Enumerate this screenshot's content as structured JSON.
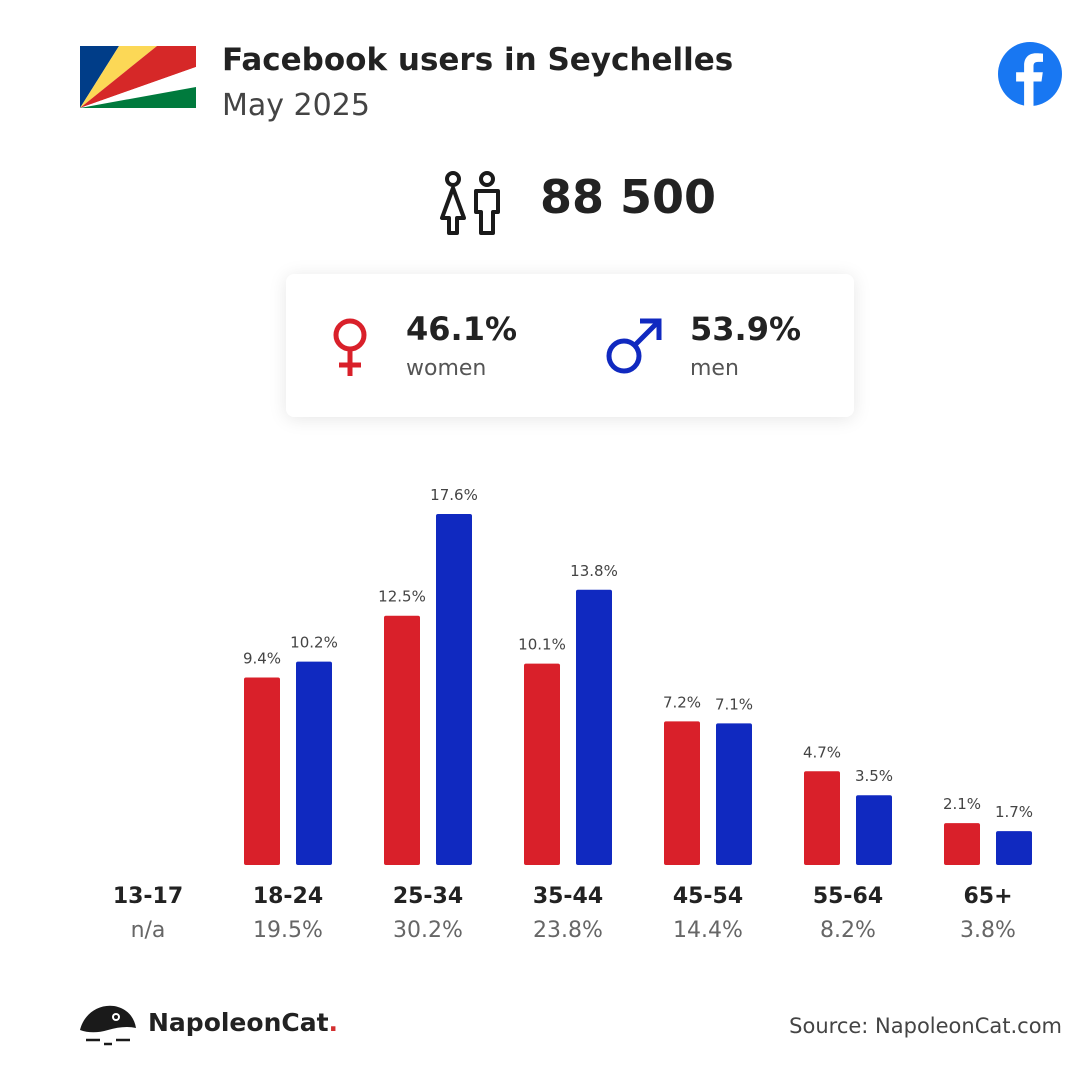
{
  "header": {
    "title": "Facebook users in Seychelles",
    "subtitle": "May 2025",
    "flag_icon": "seychelles-flag",
    "platform_icon": "facebook-icon"
  },
  "summary": {
    "total": "88 500",
    "total_icon": "people-icon",
    "women": {
      "pct": "46.1%",
      "label": "women",
      "icon": "female-symbol-icon",
      "color": "#d9202a"
    },
    "men": {
      "pct": "53.9%",
      "label": "men",
      "icon": "male-symbol-icon",
      "color": "#1029c0"
    }
  },
  "chart_data": {
    "type": "bar",
    "categories": [
      "13-17",
      "18-24",
      "25-34",
      "35-44",
      "45-54",
      "55-64",
      "65+"
    ],
    "category_totals": [
      "n/a",
      "19.5%",
      "30.2%",
      "23.8%",
      "14.4%",
      "8.2%",
      "3.8%"
    ],
    "series": [
      {
        "name": "women",
        "color": "#d9202a",
        "values": [
          null,
          9.4,
          12.5,
          10.1,
          7.2,
          4.7,
          2.1
        ],
        "labels": [
          "",
          "9.4%",
          "12.5%",
          "10.1%",
          "7.2%",
          "4.7%",
          "2.1%"
        ]
      },
      {
        "name": "men",
        "color": "#1029c0",
        "values": [
          null,
          10.2,
          17.6,
          13.8,
          7.1,
          3.5,
          1.7
        ],
        "labels": [
          "",
          "10.2%",
          "17.6%",
          "13.8%",
          "7.1%",
          "3.5%",
          "1.7%"
        ]
      }
    ],
    "ylim": [
      0,
      17.6
    ],
    "grid": false
  },
  "footer": {
    "brand": "NapoleonCat",
    "brand_dot": ".",
    "source": "Source: NapoleonCat.com"
  }
}
